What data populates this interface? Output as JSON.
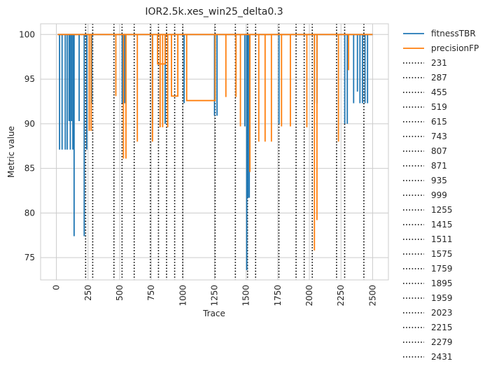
{
  "chart_data": {
    "type": "line",
    "title": "IOR2.5k.xes_win25_delta0.3",
    "xlabel": "Trace",
    "ylabel": "Metric value",
    "xlim": [
      -125,
      2625
    ],
    "ylim": [
      72.5,
      101.2
    ],
    "xticks": [
      "0",
      "250",
      "500",
      "750",
      "1000",
      "1250",
      "1500",
      "1750",
      "2000",
      "2250",
      "2500"
    ],
    "xtick_values": [
      0,
      250,
      500,
      750,
      1000,
      1250,
      1500,
      1750,
      2000,
      2250,
      2500
    ],
    "xtick_rotation": 90,
    "yticks": [
      "75",
      "80",
      "85",
      "90",
      "95",
      "100"
    ],
    "ytick_values": [
      75,
      80,
      85,
      90,
      95,
      100
    ],
    "grid": true,
    "legend_position": "outside-right",
    "series": [
      {
        "name": "fitnessTBR",
        "color": "#1f77b4",
        "dips": [
          [
            25,
            87.1
          ],
          [
            45,
            87.1
          ],
          [
            70,
            87.1
          ],
          [
            85,
            87.1
          ],
          [
            100,
            90.3
          ],
          [
            110,
            87.1
          ],
          [
            120,
            90.3
          ],
          [
            130,
            87.1
          ],
          [
            140,
            77.4
          ],
          [
            180,
            90.3
          ],
          [
            220,
            77.4
          ],
          [
            240,
            87.1
          ],
          [
            280,
            92.3
          ],
          [
            520,
            92.3
          ],
          [
            540,
            92.3
          ],
          [
            760,
            90.0
          ],
          [
            860,
            90.0
          ],
          [
            1010,
            92.3
          ],
          [
            1250,
            90.9
          ],
          [
            1270,
            90.9
          ],
          [
            1490,
            89.7
          ],
          [
            1505,
            73.6
          ],
          [
            1515,
            81.7
          ],
          [
            1525,
            81.7
          ],
          [
            1760,
            90.0
          ],
          [
            2040,
            92.3
          ],
          [
            2060,
            92.3
          ],
          [
            2280,
            90.0
          ],
          [
            2300,
            90.0
          ],
          [
            2350,
            92.3
          ],
          [
            2380,
            93.6
          ],
          [
            2400,
            92.3
          ],
          [
            2420,
            92.3
          ],
          [
            2440,
            92.3
          ],
          [
            2460,
            92.3
          ]
        ]
      },
      {
        "name": "precisionFP",
        "color": "#ff7f0e",
        "dips": [
          [
            260,
            89.2
          ],
          [
            275,
            89.2
          ],
          [
            470,
            93.1
          ],
          [
            530,
            86.1
          ],
          [
            550,
            86.1
          ],
          [
            640,
            88.0
          ],
          [
            760,
            88.0
          ],
          [
            820,
            89.6
          ],
          [
            840,
            89.6
          ],
          [
            880,
            89.6
          ],
          [
            1340,
            93.0
          ],
          [
            1420,
            93.0
          ],
          [
            1455,
            89.7
          ],
          [
            1530,
            84.6
          ],
          [
            1600,
            88.0
          ],
          [
            1650,
            88.0
          ],
          [
            1700,
            88.0
          ],
          [
            1780,
            89.7
          ],
          [
            1850,
            89.7
          ],
          [
            1980,
            89.6
          ],
          [
            2040,
            75.8
          ],
          [
            2060,
            79.2
          ],
          [
            2230,
            88.0
          ],
          [
            2310,
            96.0
          ]
        ],
        "plateaus": [
          [
            [
              800,
              860
            ],
            96.7
          ],
          [
            [
              910,
              960
            ],
            93.1
          ],
          [
            [
              1030,
              1255
            ],
            92.6
          ]
        ]
      }
    ],
    "vlines": {
      "style": "dotted",
      "color": "#000000",
      "x": [
        231,
        287,
        455,
        519,
        615,
        743,
        807,
        871,
        935,
        999,
        1255,
        1415,
        1511,
        1575,
        1759,
        1895,
        1959,
        2023,
        2215,
        2279,
        2431
      ],
      "labels": [
        "231",
        "287",
        "455",
        "519",
        "615",
        "743",
        "807",
        "871",
        "935",
        "999",
        "1255",
        "1415",
        "1511",
        "1575",
        "1759",
        "1895",
        "1959",
        "2023",
        "2215",
        "2279",
        "2431"
      ]
    }
  }
}
